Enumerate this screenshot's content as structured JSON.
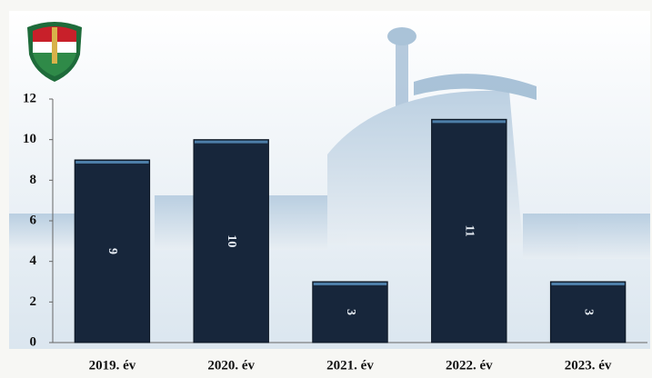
{
  "chart_data": {
    "type": "bar",
    "categories": [
      "2019. év",
      "2020. év",
      "2021. év",
      "2022. év",
      "2023. év"
    ],
    "values": [
      9,
      10,
      3,
      11,
      3
    ],
    "color": "#17263b",
    "ylim": [
      0,
      12
    ],
    "yticks": [
      0,
      2,
      4,
      6,
      8,
      10,
      12
    ]
  }
}
